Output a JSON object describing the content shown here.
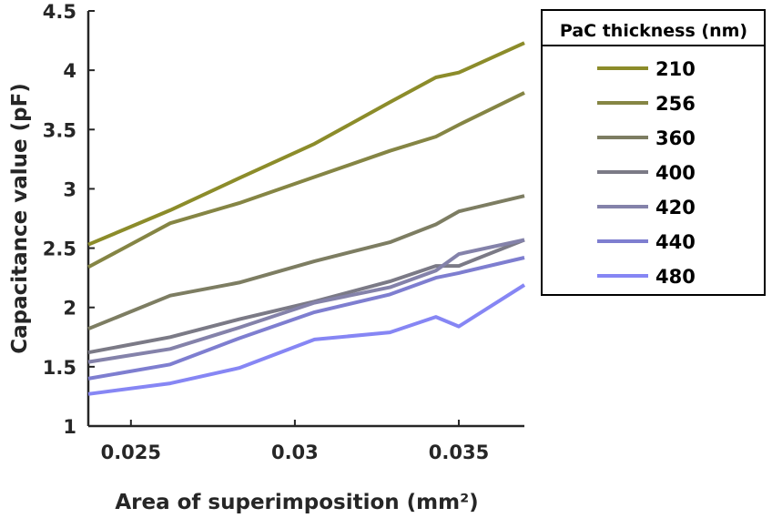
{
  "chart_data": {
    "type": "line",
    "xlabel": "Area of superimposition (mm²)",
    "ylabel": "Capacitance value (pF)",
    "xlim": [
      0.0237,
      0.037
    ],
    "ylim": [
      1,
      4.5
    ],
    "xticks": [
      0.025,
      0.03,
      0.035
    ],
    "xtick_labels": [
      "0.025",
      "0.03",
      "0.035"
    ],
    "yticks": [
      1,
      1.5,
      2,
      2.5,
      3,
      3.5,
      4,
      4.5
    ],
    "ytick_labels": [
      "1",
      "1.5",
      "2",
      "2.5",
      "3",
      "3.5",
      "4",
      "4.5"
    ],
    "grid": false,
    "legend": {
      "title": "PaC thickness (nm)",
      "placement": "outside-right-top"
    },
    "x": [
      0.0237,
      0.0262,
      0.0283,
      0.0306,
      0.0329,
      0.0343,
      0.035,
      0.037
    ],
    "series": [
      {
        "name": "210",
        "color": "#8c8c2a",
        "values": [
          2.53,
          2.82,
          3.09,
          3.38,
          3.73,
          3.94,
          3.98,
          4.23
        ]
      },
      {
        "name": "256",
        "color": "#858544",
        "values": [
          2.34,
          2.71,
          2.88,
          3.1,
          3.32,
          3.44,
          3.54,
          3.81
        ]
      },
      {
        "name": "360",
        "color": "#7d7d62",
        "values": [
          1.82,
          2.1,
          2.21,
          2.39,
          2.55,
          2.7,
          2.81,
          2.94
        ]
      },
      {
        "name": "400",
        "color": "#7b7a86",
        "values": [
          1.62,
          1.75,
          1.9,
          2.05,
          2.22,
          2.35,
          2.35,
          2.57
        ]
      },
      {
        "name": "420",
        "color": "#8482aa",
        "values": [
          1.54,
          1.65,
          1.83,
          2.04,
          2.17,
          2.31,
          2.45,
          2.57
        ]
      },
      {
        "name": "440",
        "color": "#7e7ed0",
        "values": [
          1.4,
          1.52,
          1.74,
          1.96,
          2.11,
          2.25,
          2.29,
          2.42
        ]
      },
      {
        "name": "480",
        "color": "#8686f4",
        "values": [
          1.27,
          1.36,
          1.49,
          1.73,
          1.79,
          1.92,
          1.84,
          2.19
        ]
      }
    ]
  }
}
